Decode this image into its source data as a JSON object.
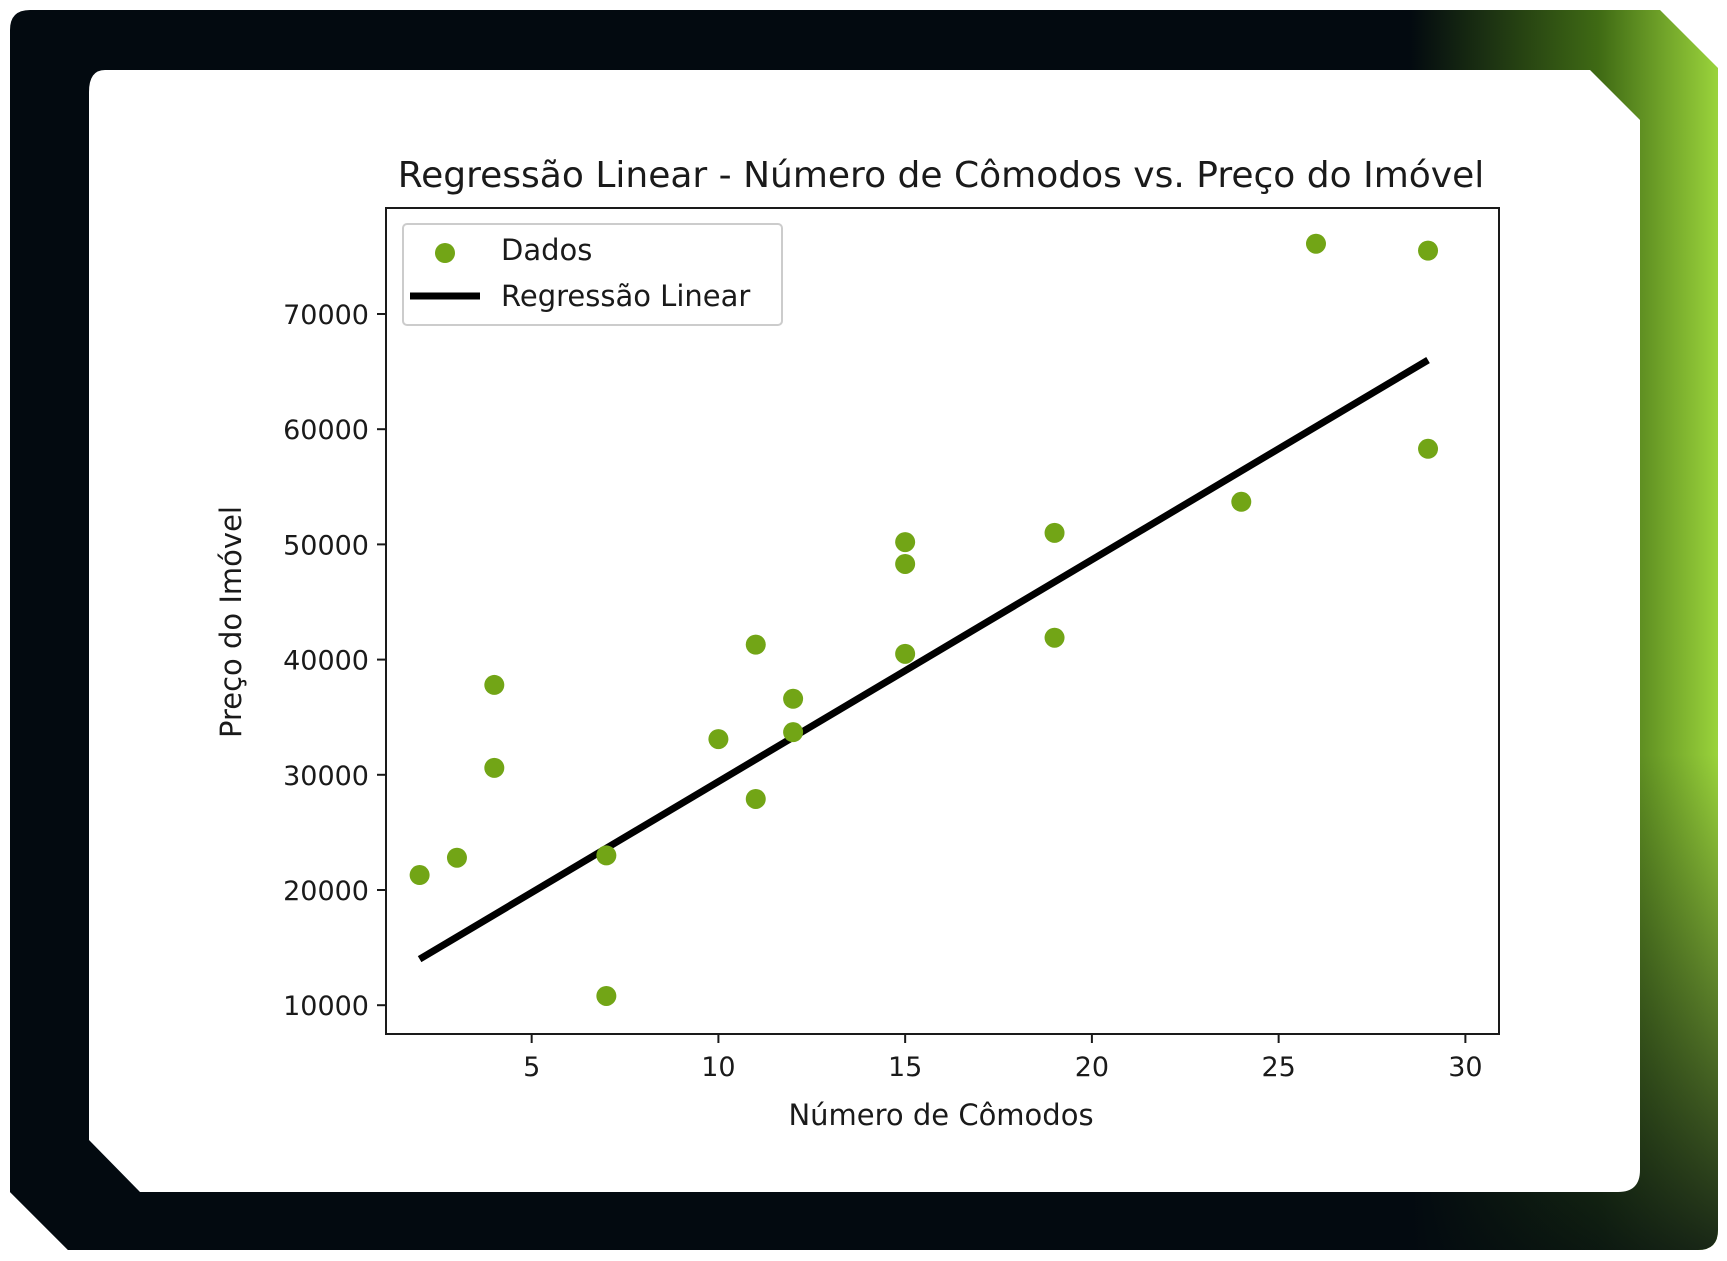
{
  "frame": {
    "outer_color": "#030a10",
    "accent_color": "#9ad33b",
    "card_color": "#ffffff"
  },
  "chart_data": {
    "type": "scatter",
    "title": "Regressão Linear - Número de Cômodos vs. Preço do Imóvel",
    "xlabel": "Número de Cômodos",
    "ylabel": "Preço do Imóvel",
    "xlim": [
      1.1,
      30.9
    ],
    "ylim": [
      7500,
      79200
    ],
    "xticks": [
      5,
      10,
      15,
      20,
      25,
      30
    ],
    "yticks": [
      10000,
      20000,
      30000,
      40000,
      50000,
      60000,
      70000
    ],
    "xtick_labels": [
      "5",
      "10",
      "15",
      "20",
      "25",
      "30"
    ],
    "ytick_labels": [
      "10000",
      "20000",
      "30000",
      "40000",
      "50000",
      "60000",
      "70000"
    ],
    "grid": false,
    "legend_position": "top-left",
    "legend": [
      "Dados",
      "Regressão Linear"
    ],
    "series": [
      {
        "name": "Dados",
        "kind": "scatter",
        "color": "#72a516",
        "points": [
          [
            2,
            21300
          ],
          [
            3,
            22800
          ],
          [
            4,
            30600
          ],
          [
            4,
            37800
          ],
          [
            7,
            10800
          ],
          [
            7,
            23000
          ],
          [
            10,
            33100
          ],
          [
            11,
            27900
          ],
          [
            11,
            41300
          ],
          [
            12,
            33700
          ],
          [
            12,
            36600
          ],
          [
            15,
            40500
          ],
          [
            15,
            48300
          ],
          [
            15,
            50200
          ],
          [
            19,
            41900
          ],
          [
            19,
            51000
          ],
          [
            24,
            53700
          ],
          [
            26,
            76100
          ],
          [
            29,
            58300
          ],
          [
            29,
            75500
          ]
        ]
      },
      {
        "name": "Regressão Linear",
        "kind": "line",
        "color": "#000000",
        "points": [
          [
            2,
            14000
          ],
          [
            29,
            66000
          ]
        ]
      }
    ]
  }
}
